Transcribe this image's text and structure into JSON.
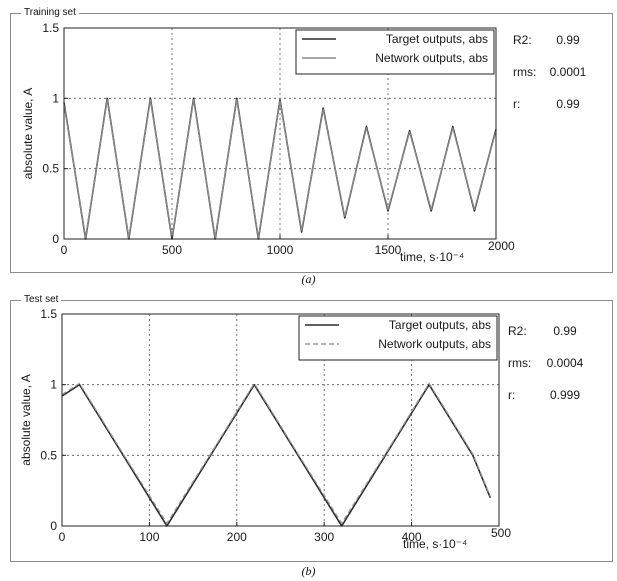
{
  "captions": [
    "(a)",
    "(b)"
  ],
  "chart_data": [
    {
      "type": "line",
      "panel_title": "Training set",
      "xlabel": "time, s·10⁻⁴",
      "ylabel": "absolute value, A",
      "xlim": [
        0,
        2000
      ],
      "ylim": [
        0,
        1.5
      ],
      "xticks": [
        0,
        500,
        1000,
        1500,
        2000
      ],
      "yticks": [
        0,
        0.5,
        1,
        1.5
      ],
      "grid": true,
      "legend_position": "top-right",
      "series": [
        {
          "name": "Target outputs, abs",
          "color": "#2b2b2b",
          "dash": "solid",
          "x": [
            0,
            100,
            200,
            300,
            400,
            500,
            600,
            700,
            800,
            900,
            1000,
            1100,
            1200,
            1300,
            1400,
            1500,
            1600,
            1700,
            1800,
            1900,
            2000
          ],
          "y": [
            0.97,
            0.0,
            1.0,
            0.0,
            1.0,
            0.0,
            1.0,
            0.0,
            1.0,
            0.0,
            0.99,
            0.05,
            0.93,
            0.15,
            0.8,
            0.2,
            0.77,
            0.2,
            0.8,
            0.2,
            0.78
          ]
        },
        {
          "name": "Network outputs, abs",
          "color": "#8a8a8a",
          "dash": "solid",
          "x": [
            0,
            100,
            200,
            300,
            400,
            500,
            600,
            700,
            800,
            900,
            1000,
            1100,
            1200,
            1300,
            1400,
            1500,
            1600,
            1700,
            1800,
            1900,
            2000
          ],
          "y": [
            0.96,
            0.01,
            0.99,
            0.01,
            0.99,
            0.01,
            0.99,
            0.01,
            0.99,
            0.01,
            0.98,
            0.06,
            0.92,
            0.16,
            0.79,
            0.21,
            0.76,
            0.21,
            0.79,
            0.21,
            0.77
          ]
        }
      ],
      "stats": [
        {
          "label": "R2:",
          "value": "0.99"
        },
        {
          "label": "rms:",
          "value": "0.0001"
        },
        {
          "label": "r:",
          "value": "0.99"
        }
      ]
    },
    {
      "type": "line",
      "panel_title": "Test set",
      "xlabel": "time, s·10⁻⁴",
      "ylabel": "absolute value, A",
      "xlim": [
        0,
        500
      ],
      "ylim": [
        0,
        1.5
      ],
      "xticks": [
        0,
        100,
        200,
        300,
        400,
        500
      ],
      "yticks": [
        0,
        0.5,
        1,
        1.5
      ],
      "grid": true,
      "legend_position": "top-right",
      "series": [
        {
          "name": "Target outputs, abs",
          "color": "#2b2b2b",
          "dash": "solid",
          "x": [
            0,
            20,
            70,
            120,
            170,
            220,
            270,
            320,
            370,
            420,
            470,
            490
          ],
          "y": [
            0.92,
            1.0,
            0.5,
            0.0,
            0.5,
            1.0,
            0.5,
            0.0,
            0.5,
            1.0,
            0.5,
            0.2
          ]
        },
        {
          "name": "Network outputs, abs",
          "color": "#9a9a9a",
          "dash": "dashed",
          "x": [
            0,
            20,
            70,
            120,
            170,
            220,
            270,
            320,
            370,
            420,
            470,
            490
          ],
          "y": [
            0.93,
            1.01,
            0.51,
            0.02,
            0.51,
            1.01,
            0.51,
            0.02,
            0.51,
            1.01,
            0.51,
            0.21
          ]
        }
      ],
      "stats": [
        {
          "label": "R2:",
          "value": "0.99"
        },
        {
          "label": "rms:",
          "value": "0.0004"
        },
        {
          "label": "r:",
          "value": "0.999"
        }
      ]
    }
  ]
}
